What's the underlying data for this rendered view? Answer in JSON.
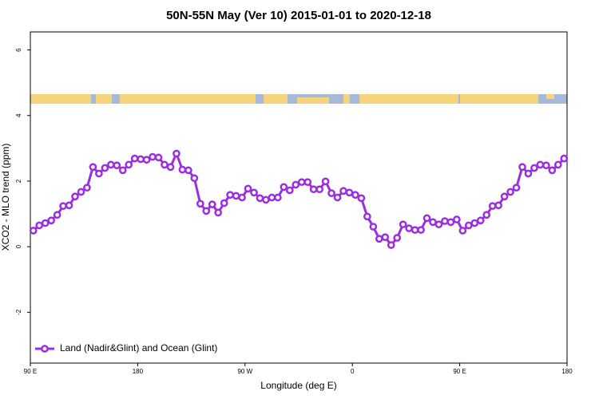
{
  "chart_data": {
    "type": "line",
    "title": "50N-55N May (Ver 10)   2015-01-01 to 2020-12-18",
    "x_label": "Longitude (deg E)",
    "y_label": "XCO2 - MLO trend (ppm)",
    "xlim": [
      90,
      540
    ],
    "ylim": [
      -3.55,
      6.55
    ],
    "xticks": [
      {
        "value": 90,
        "label": "90 E"
      },
      180,
      {
        "value": 270,
        "label": "90 W"
      },
      {
        "value": 360,
        "label": "0"
      },
      {
        "value": 450,
        "label": "90 E"
      },
      {
        "value": 540,
        "label": "180"
      }
    ],
    "yticks": [
      -2,
      0,
      2,
      4,
      6
    ],
    "legend_position": "bottom-left",
    "x": [
      92.5,
      97.5,
      102.5,
      107.5,
      112.5,
      117.5,
      122.5,
      127.5,
      132.5,
      137.5,
      142.5,
      147.5,
      152.5,
      157.5,
      162.5,
      167.5,
      172.5,
      177.5,
      182.5,
      187.5,
      192.5,
      197.5,
      202.5,
      207.5,
      212.5,
      217.5,
      222.5,
      227.5,
      232.5,
      237.5,
      242.5,
      247.5,
      252.5,
      257.5,
      262.5,
      267.5,
      272.5,
      277.5,
      282.5,
      287.5,
      292.5,
      297.5,
      302.5,
      307.5,
      312.5,
      317.5,
      322.5,
      327.5,
      332.5,
      337.5,
      342.5,
      347.5,
      352.5,
      357.5,
      362.5,
      367.5,
      372.5,
      377.5,
      382.5,
      387.5,
      392.5,
      397.5,
      402.5,
      407.5,
      412.5,
      417.5,
      422.5,
      427.5,
      432.5,
      437.5,
      442.5,
      447.5,
      452.5,
      457.5,
      462.5,
      467.5,
      472.5,
      477.5,
      482.5,
      487.5,
      492.5,
      497.5,
      502.5,
      507.5,
      512.5,
      517.5,
      522.5,
      527.5,
      532.5,
      537.5
    ],
    "series": [
      {
        "name": "Land (Nadir&Glint) and Ocean (Glint)",
        "color": "#9a2ee0",
        "values": [
          0.49,
          0.65,
          0.72,
          0.8,
          0.97,
          1.24,
          1.26,
          1.53,
          1.67,
          1.8,
          2.43,
          2.23,
          2.4,
          2.5,
          2.48,
          2.33,
          2.5,
          2.69,
          2.67,
          2.65,
          2.74,
          2.72,
          2.5,
          2.43,
          2.84,
          2.35,
          2.33,
          2.09,
          1.31,
          1.09,
          1.29,
          1.04,
          1.33,
          1.58,
          1.55,
          1.5,
          1.77,
          1.65,
          1.48,
          1.43,
          1.5,
          1.5,
          1.82,
          1.72,
          1.89,
          1.97,
          1.97,
          1.75,
          1.75,
          1.99,
          1.63,
          1.5,
          1.7,
          1.65,
          1.58,
          1.48,
          0.92,
          0.61,
          0.24,
          0.29,
          0.05,
          0.27,
          0.68,
          0.56,
          0.51,
          0.51,
          0.87,
          0.75,
          0.68,
          0.78,
          0.75,
          0.83,
          0.49,
          0.65,
          0.72,
          0.8,
          0.97,
          1.24,
          1.26,
          1.53,
          1.67,
          1.8,
          2.43,
          2.23,
          2.4,
          2.5,
          2.48,
          2.33,
          2.5,
          2.69
        ]
      }
    ]
  }
}
